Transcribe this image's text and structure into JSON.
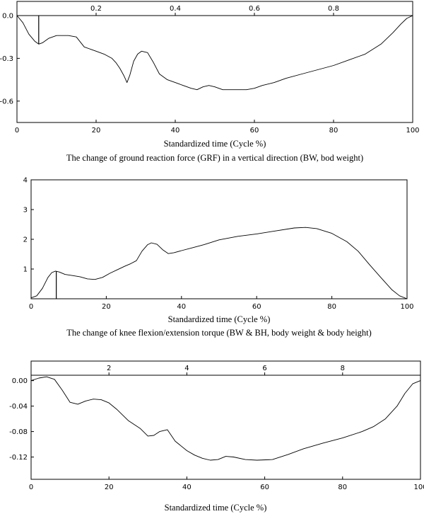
{
  "chart_data": [
    {
      "type": "line",
      "xlabel": "Standardized time (Cycle %)",
      "caption": "The change of ground reaction force (GRF) in a vertical direction (BW, bod weight)",
      "xlim": [
        0,
        100
      ],
      "ylim": [
        -0.75,
        0
      ],
      "xticks": [
        "0",
        "20",
        "40",
        "60",
        "80",
        "100"
      ],
      "yticks": [
        {
          "v": 0,
          "label": "0.0"
        },
        {
          "v": -0.3,
          "label": "-0.3"
        },
        {
          "v": -0.6,
          "label": "-0.6"
        }
      ],
      "top_ticks": [
        {
          "v": 0.2,
          "label": "0.2"
        },
        {
          "v": 0.4,
          "label": "0.4"
        },
        {
          "v": 0.6,
          "label": "0.6"
        },
        {
          "v": 0.8,
          "label": "0.8"
        }
      ],
      "top_lim": [
        0,
        1
      ],
      "marker_x": 5.5,
      "x": [
        0,
        1.5,
        3,
        4.5,
        5.5,
        6.5,
        8,
        10,
        13,
        15,
        17,
        20,
        22,
        24,
        25,
        26,
        27,
        27.8,
        28.5,
        29.5,
        30.5,
        31.5,
        33,
        34.5,
        36,
        38,
        40,
        42,
        44,
        45.5,
        47,
        48.5,
        50,
        52,
        54,
        56,
        58,
        60,
        62,
        65,
        68,
        72,
        76,
        80,
        84,
        88,
        92,
        95,
        97,
        98.5,
        100
      ],
      "y": [
        0,
        -0.05,
        -0.13,
        -0.18,
        -0.2,
        -0.19,
        -0.16,
        -0.14,
        -0.14,
        -0.15,
        -0.22,
        -0.25,
        -0.27,
        -0.3,
        -0.33,
        -0.37,
        -0.42,
        -0.47,
        -0.42,
        -0.32,
        -0.27,
        -0.25,
        -0.26,
        -0.33,
        -0.41,
        -0.45,
        -0.47,
        -0.49,
        -0.51,
        -0.52,
        -0.5,
        -0.49,
        -0.5,
        -0.52,
        -0.52,
        -0.52,
        -0.52,
        -0.51,
        -0.49,
        -0.47,
        -0.44,
        -0.41,
        -0.38,
        -0.35,
        -0.31,
        -0.27,
        -0.2,
        -0.12,
        -0.06,
        -0.02,
        0
      ]
    },
    {
      "type": "line",
      "xlabel": "Standardized time (Cycle %)",
      "caption": "The change of knee flexion/extension torque (BW & BH, body weight & body height)",
      "xlim": [
        0,
        100
      ],
      "ylim": [
        0,
        4
      ],
      "xticks": [
        "0",
        "20",
        "40",
        "60",
        "80",
        "100"
      ],
      "yticks": [
        {
          "v": 1,
          "label": "1"
        },
        {
          "v": 2,
          "label": "2"
        },
        {
          "v": 3,
          "label": "3"
        },
        {
          "v": 4,
          "label": "4"
        }
      ],
      "marker_x": 6.7,
      "x": [
        0,
        1.5,
        3,
        4.5,
        5.5,
        6.5,
        7.5,
        9,
        11,
        13,
        15,
        17,
        19,
        21,
        23,
        25,
        26.5,
        28,
        29.5,
        31,
        32,
        33.5,
        35,
        36.5,
        38,
        40,
        43,
        46,
        50,
        55,
        60,
        65,
        70,
        73,
        76,
        80,
        84,
        87,
        90,
        93,
        96,
        98,
        100
      ],
      "y": [
        0.03,
        0.1,
        0.35,
        0.72,
        0.88,
        0.93,
        0.9,
        0.82,
        0.78,
        0.74,
        0.67,
        0.65,
        0.72,
        0.86,
        0.98,
        1.1,
        1.18,
        1.28,
        1.6,
        1.82,
        1.88,
        1.83,
        1.65,
        1.52,
        1.55,
        1.62,
        1.72,
        1.82,
        1.98,
        2.1,
        2.18,
        2.28,
        2.38,
        2.4,
        2.36,
        2.2,
        1.92,
        1.6,
        1.15,
        0.72,
        0.3,
        0.1,
        0
      ]
    },
    {
      "type": "line",
      "xlabel": "Standardized time (Cycle %)",
      "xlim": [
        0,
        100
      ],
      "ylim": [
        -0.155,
        0.0085
      ],
      "xticks": [
        "0",
        "20",
        "40",
        "60",
        "80",
        "100"
      ],
      "yticks": [
        {
          "v": 0,
          "label": "0.00"
        },
        {
          "v": -0.04,
          "label": "-0.04"
        },
        {
          "v": -0.08,
          "label": "-0.08"
        },
        {
          "v": -0.12,
          "label": "-0.12"
        }
      ],
      "top_ticks": [
        {
          "v": 2,
          "label": "2"
        },
        {
          "v": 4,
          "label": "4"
        },
        {
          "v": 6,
          "label": "6"
        },
        {
          "v": 8,
          "label": "8"
        }
      ],
      "top_lim": [
        0,
        10
      ],
      "x": [
        0,
        2,
        4,
        6,
        8,
        10,
        12,
        14,
        16,
        18,
        20,
        22,
        25,
        28,
        30,
        31.5,
        33,
        35,
        37,
        40,
        42,
        44,
        46,
        48,
        50,
        52,
        55,
        58,
        62,
        66,
        70,
        75,
        80,
        85,
        88,
        91,
        94,
        96,
        98,
        100
      ],
      "y": [
        0,
        0.004,
        0.006,
        0.002,
        -0.015,
        -0.034,
        -0.037,
        -0.032,
        -0.029,
        -0.03,
        -0.035,
        -0.045,
        -0.063,
        -0.075,
        -0.087,
        -0.086,
        -0.08,
        -0.077,
        -0.095,
        -0.11,
        -0.117,
        -0.122,
        -0.125,
        -0.124,
        -0.119,
        -0.12,
        -0.124,
        -0.125,
        -0.124,
        -0.116,
        -0.107,
        -0.098,
        -0.09,
        -0.08,
        -0.072,
        -0.06,
        -0.04,
        -0.02,
        -0.005,
        0
      ]
    }
  ]
}
